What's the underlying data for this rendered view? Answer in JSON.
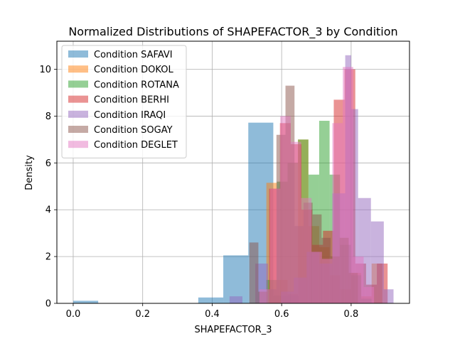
{
  "chart_data": {
    "type": "bar",
    "title": "Normalized Distributions of SHAPEFACTOR_3 by Condition",
    "xlabel": "SHAPEFACTOR_3",
    "ylabel": "Density",
    "xlim": [
      -0.047,
      0.968
    ],
    "ylim": [
      0,
      11.2
    ],
    "xticks": [
      "0.0",
      "0.2",
      "0.4",
      "0.6",
      "0.8"
    ],
    "xtick_values": [
      0.0,
      0.2,
      0.4,
      0.6,
      0.8
    ],
    "yticks": [
      "0",
      "2",
      "4",
      "6",
      "8",
      "10"
    ],
    "ytick_values": [
      0,
      2,
      4,
      6,
      8,
      10
    ],
    "grid": true,
    "legend_position": "top-left",
    "bar_alpha": 0.5,
    "series": [
      {
        "name": "Condition SAFAVI",
        "color": "#1f77b4",
        "bins": [
          [
            0.0,
            0.072,
            0.11
          ],
          [
            0.072,
            0.144,
            0
          ],
          [
            0.144,
            0.216,
            0
          ],
          [
            0.216,
            0.288,
            0
          ],
          [
            0.288,
            0.36,
            0
          ],
          [
            0.36,
            0.432,
            0.25
          ],
          [
            0.432,
            0.504,
            2.05
          ],
          [
            0.504,
            0.576,
            7.72
          ],
          [
            0.576,
            0.648,
            0.33
          ]
        ]
      },
      {
        "name": "Condition DOKOL",
        "color": "#ff7f0e",
        "bins": [
          [
            0.556,
            0.586,
            5.15
          ],
          [
            0.586,
            0.617,
            1.0
          ],
          [
            0.617,
            0.647,
            0.4
          ],
          [
            0.647,
            0.677,
            7.0
          ],
          [
            0.677,
            0.708,
            3.3
          ],
          [
            0.708,
            0.738,
            2.4
          ],
          [
            0.738,
            0.768,
            1.2
          ],
          [
            0.768,
            0.799,
            0.6
          ],
          [
            0.799,
            0.829,
            1.3
          ],
          [
            0.829,
            0.859,
            0.3
          ],
          [
            0.859,
            0.89,
            1.7
          ]
        ]
      },
      {
        "name": "Condition ROTANA",
        "color": "#2ca02c",
        "bins": [
          [
            0.556,
            0.586,
            1.0
          ],
          [
            0.586,
            0.617,
            5.2
          ],
          [
            0.617,
            0.647,
            6.0
          ],
          [
            0.647,
            0.677,
            7.0
          ],
          [
            0.677,
            0.708,
            5.5
          ],
          [
            0.708,
            0.738,
            7.8
          ],
          [
            0.738,
            0.768,
            5.5
          ],
          [
            0.768,
            0.799,
            2.5
          ],
          [
            0.799,
            0.829,
            1.2
          ],
          [
            0.829,
            0.859,
            0.2
          ]
        ]
      },
      {
        "name": "Condition BERHI",
        "color": "#d62728",
        "bins": [
          [
            0.564,
            0.595,
            4.9
          ],
          [
            0.595,
            0.626,
            7.7
          ],
          [
            0.626,
            0.657,
            6.8
          ],
          [
            0.657,
            0.688,
            4.0
          ],
          [
            0.688,
            0.719,
            2.5
          ],
          [
            0.719,
            0.75,
            3.1
          ],
          [
            0.75,
            0.781,
            8.7
          ],
          [
            0.781,
            0.812,
            10.0
          ],
          [
            0.812,
            0.843,
            1.7
          ],
          [
            0.843,
            0.874,
            0.8
          ],
          [
            0.874,
            0.905,
            1.7
          ]
        ]
      },
      {
        "name": "Condition IRAQI",
        "color": "#9467bd",
        "bins": [
          [
            0.45,
            0.487,
            0.3
          ],
          [
            0.524,
            0.561,
            1.7
          ],
          [
            0.598,
            0.635,
            0.5
          ],
          [
            0.635,
            0.672,
            1.1
          ],
          [
            0.672,
            0.709,
            2.2
          ],
          [
            0.709,
            0.746,
            1.7
          ],
          [
            0.746,
            0.783,
            4.7
          ],
          [
            0.783,
            0.8,
            10.6
          ],
          [
            0.8,
            0.82,
            8.3
          ],
          [
            0.82,
            0.857,
            4.5
          ],
          [
            0.857,
            0.894,
            3.5
          ],
          [
            0.894,
            0.922,
            0.6
          ]
        ]
      },
      {
        "name": "Condition SOGAY",
        "color": "#8c564b",
        "bins": [
          [
            0.507,
            0.533,
            2.6
          ],
          [
            0.533,
            0.559,
            0.5
          ],
          [
            0.559,
            0.585,
            0.6
          ],
          [
            0.585,
            0.611,
            7.2
          ],
          [
            0.611,
            0.637,
            9.3
          ],
          [
            0.637,
            0.663,
            3.3
          ],
          [
            0.663,
            0.689,
            4.3
          ],
          [
            0.689,
            0.715,
            3.8
          ],
          [
            0.715,
            0.741,
            2.8
          ],
          [
            0.741,
            0.767,
            2.0
          ],
          [
            0.767,
            0.793,
            2.8
          ],
          [
            0.793,
            0.819,
            1.3
          ]
        ]
      },
      {
        "name": "Condition DEGLET",
        "color": "#e377c2",
        "bins": [
          [
            0.536,
            0.566,
            0.6
          ],
          [
            0.566,
            0.596,
            4.9
          ],
          [
            0.596,
            0.626,
            8.0
          ],
          [
            0.626,
            0.656,
            6.9
          ],
          [
            0.656,
            0.686,
            4.5
          ],
          [
            0.686,
            0.716,
            2.2
          ],
          [
            0.716,
            0.746,
            1.9
          ],
          [
            0.746,
            0.776,
            7.7
          ],
          [
            0.776,
            0.806,
            10.1
          ],
          [
            0.806,
            0.836,
            2.0
          ],
          [
            0.836,
            0.866,
            0.7
          ]
        ]
      }
    ]
  }
}
